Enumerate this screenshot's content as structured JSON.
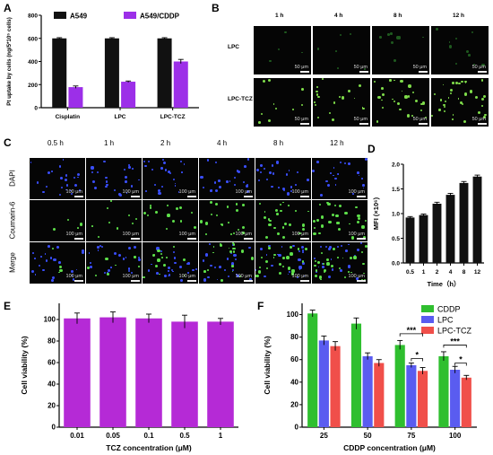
{
  "panels": {
    "a": "A",
    "b": "B",
    "c": "C",
    "d": "D",
    "e": "E",
    "f": "F"
  },
  "chart_data": [
    {
      "id": "A",
      "type": "bar",
      "categories": [
        "Cisplatin",
        "LPC",
        "LPC-TCZ"
      ],
      "series": [
        {
          "name": "A549",
          "color": "#111111",
          "values": [
            600,
            600,
            600
          ],
          "errors": [
            6,
            6,
            6
          ]
        },
        {
          "name": "A549/CDDP",
          "color": "#9c2fe8",
          "values": [
            178,
            225,
            400
          ],
          "errors": [
            10,
            6,
            18
          ]
        }
      ],
      "ylabel": "Pt uptake by cells (ng/5*10⁵ cells)",
      "ylim": [
        0,
        800
      ],
      "yticks": [
        "0",
        "200",
        "400",
        "600",
        "800"
      ],
      "legend": "top"
    },
    {
      "id": "D",
      "type": "bar",
      "categories": [
        "0.5",
        "1",
        "2",
        "4",
        "8",
        "12"
      ],
      "values": [
        0.92,
        0.97,
        1.2,
        1.38,
        1.62,
        1.75
      ],
      "errors": [
        0.02,
        0.02,
        0.03,
        0.03,
        0.03,
        0.03
      ],
      "color": "#111111",
      "ylabel": "MFI (×10⁶)",
      "xlabel": "Time（h）",
      "ylim": [
        0,
        2.0
      ],
      "yticks": [
        "0.0",
        "0.5",
        "1.0",
        "1.5",
        "2.0"
      ]
    },
    {
      "id": "E",
      "type": "bar",
      "categories": [
        "0.01",
        "0.05",
        "0.1",
        "0.5",
        "1"
      ],
      "values": [
        101,
        102,
        101,
        98,
        98
      ],
      "errors": [
        5,
        5,
        4,
        6,
        3
      ],
      "color": "#b52ad6",
      "ylabel": "Cell viability (%)",
      "xlabel": "TCZ concentration (μM)",
      "ylim": [
        0,
        115
      ],
      "yticks": [
        "0",
        "20",
        "40",
        "60",
        "80",
        "100"
      ]
    },
    {
      "id": "F",
      "type": "bar",
      "categories": [
        "25",
        "50",
        "75",
        "100"
      ],
      "series": [
        {
          "name": "CDDP",
          "color": "#2fbf2f",
          "values": [
            101,
            92,
            73,
            63
          ],
          "errors": [
            3,
            5,
            4,
            4
          ]
        },
        {
          "name": "LPC",
          "color": "#5a5cf0",
          "values": [
            77,
            63,
            55,
            51
          ],
          "errors": [
            4,
            3,
            2,
            3
          ]
        },
        {
          "name": "LPC-TCZ",
          "color": "#f04f4a",
          "values": [
            72,
            57,
            50,
            44
          ],
          "errors": [
            4,
            3,
            3,
            2
          ]
        }
      ],
      "ylabel": "Cell viability (%)",
      "xlabel": "CDDP concentration (μM)",
      "ylim": [
        0,
        110
      ],
      "yticks": [
        "0",
        "20",
        "40",
        "60",
        "80",
        "100"
      ],
      "annotations": [
        "***",
        "*",
        "***",
        "*"
      ],
      "legend": "top-right"
    }
  ],
  "micro_b": {
    "columns": [
      "1 h",
      "4 h",
      "8 h",
      "12 h"
    ],
    "rows": [
      "LPC",
      "LPC-TCZ"
    ],
    "scale": "50 μm"
  },
  "micro_c": {
    "columns": [
      "0.5 h",
      "1 h",
      "2 h",
      "4 h",
      "8 h",
      "12 h"
    ],
    "rows": [
      "DAPI",
      "Coumarin-6",
      "Merge"
    ],
    "scale": "100 μm"
  }
}
